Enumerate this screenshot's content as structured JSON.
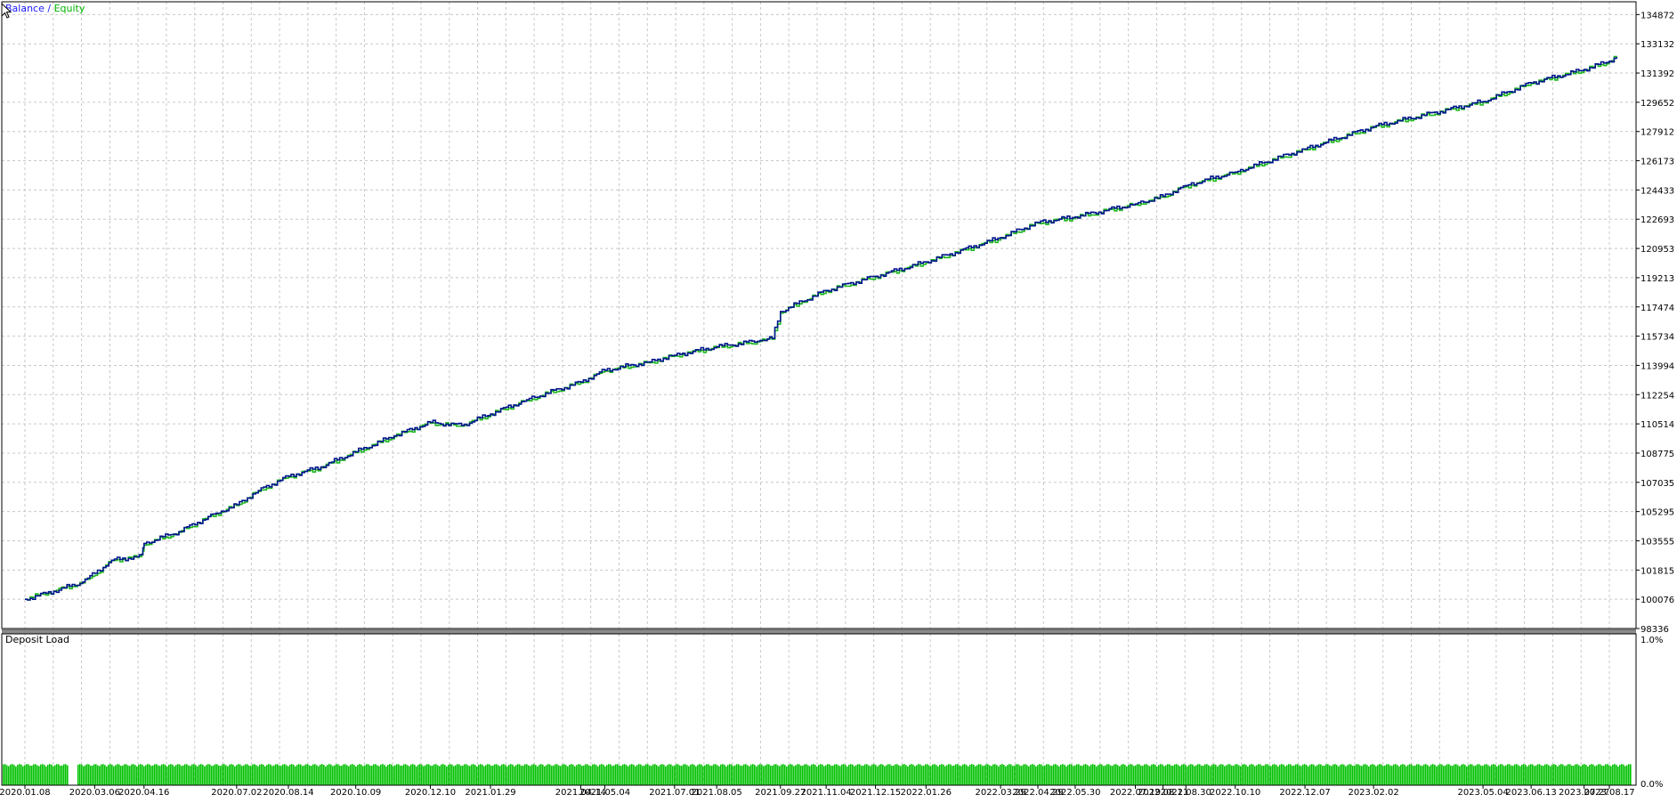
{
  "legend": {
    "balance": "Balance",
    "separator": " / ",
    "equity": "Equity"
  },
  "subwindow_title": "Deposit Load",
  "colors": {
    "balance": "#00168b",
    "equity": "#1fb81f",
    "grid": "#c8c8c8",
    "axis": "#000000",
    "deposit_bars": "#00c000",
    "legend_balance": "#1a1aff",
    "legend_equity": "#00b000"
  },
  "chart_data": [
    {
      "type": "line",
      "series": [
        {
          "name": "Balance",
          "x": [
            "2020.01.08",
            "2020.02.01",
            "2020.02.25",
            "2020.03.06",
            "2020.03.20",
            "2020.04.10",
            "2020.04.14",
            "2020.04.16",
            "2020.05.15",
            "2020.06.15",
            "2020.07.02",
            "2020.07.20",
            "2020.08.14",
            "2020.09.10",
            "2020.10.09",
            "2020.11.10",
            "2020.12.10",
            "2021.01.05",
            "2021.01.29",
            "2021.02.28",
            "2021.04.14",
            "2021.05.04",
            "2021.06.10",
            "2021.07.01",
            "2021.08.05",
            "2021.09.10",
            "2021.09.20",
            "2021.09.27",
            "2021.10.15",
            "2021.11.04",
            "2021.12.15",
            "2022.01.26",
            "2022.03.29",
            "2022.04.29",
            "2022.05.30",
            "2022.07.19",
            "2022.08.11",
            "2022.08.30",
            "2022.10.10",
            "2022.12.07",
            "2023.02.02",
            "2023.05.04",
            "2023.06.13",
            "2023.07.27",
            "2023.08.17",
            "2023.08.23"
          ],
          "y": [
            100076,
            100550,
            101100,
            101620,
            102400,
            102600,
            102750,
            103400,
            104100,
            105200,
            105700,
            106550,
            107400,
            107950,
            108850,
            109800,
            110600,
            110420,
            111100,
            111950,
            113000,
            113700,
            114200,
            114600,
            115100,
            115470,
            115600,
            117200,
            117800,
            118450,
            119300,
            120150,
            121600,
            122500,
            122830,
            123600,
            124050,
            124700,
            125500,
            126870,
            128200,
            129700,
            130800,
            131600,
            132100,
            132350
          ]
        },
        {
          "name": "Equity",
          "x": [
            "2020.01.08",
            "2020.02.01",
            "2020.02.25",
            "2020.03.06",
            "2020.03.20",
            "2020.04.10",
            "2020.04.14",
            "2020.04.16",
            "2020.05.15",
            "2020.06.15",
            "2020.07.02",
            "2020.07.20",
            "2020.08.14",
            "2020.09.10",
            "2020.10.09",
            "2020.11.10",
            "2020.12.10",
            "2021.01.05",
            "2021.01.29",
            "2021.02.28",
            "2021.04.14",
            "2021.05.04",
            "2021.06.10",
            "2021.07.01",
            "2021.08.05",
            "2021.09.10",
            "2021.09.20",
            "2021.09.27",
            "2021.10.15",
            "2021.11.04",
            "2021.12.15",
            "2022.01.26",
            "2022.03.29",
            "2022.04.29",
            "2022.05.30",
            "2022.07.19",
            "2022.08.11",
            "2022.08.30",
            "2022.10.10",
            "2022.12.07",
            "2023.02.02",
            "2023.05.04",
            "2023.06.13",
            "2023.07.27",
            "2023.08.17",
            "2023.08.23"
          ],
          "y": [
            100076,
            100560,
            101050,
            101500,
            102380,
            102580,
            102700,
            103300,
            104060,
            105150,
            105660,
            106500,
            107350,
            107900,
            108800,
            109760,
            110560,
            110380,
            111060,
            111900,
            112950,
            113650,
            114150,
            114560,
            115060,
            115420,
            115550,
            117100,
            117750,
            118400,
            119250,
            120100,
            121550,
            122450,
            122780,
            123560,
            124000,
            124650,
            125450,
            126820,
            128150,
            129650,
            130760,
            131560,
            132060,
            132330
          ]
        }
      ],
      "ylim": [
        98336,
        135632
      ],
      "yticks": [
        "134872",
        "133132",
        "131392",
        "129652",
        "127912",
        "126173",
        "124433",
        "122693",
        "120953",
        "119213",
        "117474",
        "115734",
        "113994",
        "112254",
        "110514",
        "108775",
        "107035",
        "105295",
        "103555",
        "101815",
        "100076",
        "98336"
      ],
      "xticks": [
        "2020.01.08",
        "2020.03.06",
        "2020.04.16",
        "2020.07.02",
        "2020.08.14",
        "2020.10.09",
        "2020.12.10",
        "2021.01.29",
        "2021.04.14",
        "2021.05.04",
        "2021.07.01",
        "2021.08.05",
        "2021.09.27",
        "2021.11.04",
        "2021.12.15",
        "2022.01.26",
        "2022.03.29",
        "2022.04.29",
        "2022.05.30",
        "2022.07.19",
        "2022.08.11",
        "2022.08.30",
        "2022.10.10",
        "2022.12.07",
        "2023.02.02",
        "2023.05.04",
        "2023.06.13",
        "2023.07.27",
        "2023.08.17"
      ],
      "grid": true
    },
    {
      "type": "bar",
      "title": "Deposit Load",
      "ylim": [
        0,
        1.0
      ],
      "yticks": [
        "1.0%",
        "0.0%"
      ],
      "bar_level": 0.14,
      "grid": true
    }
  ]
}
